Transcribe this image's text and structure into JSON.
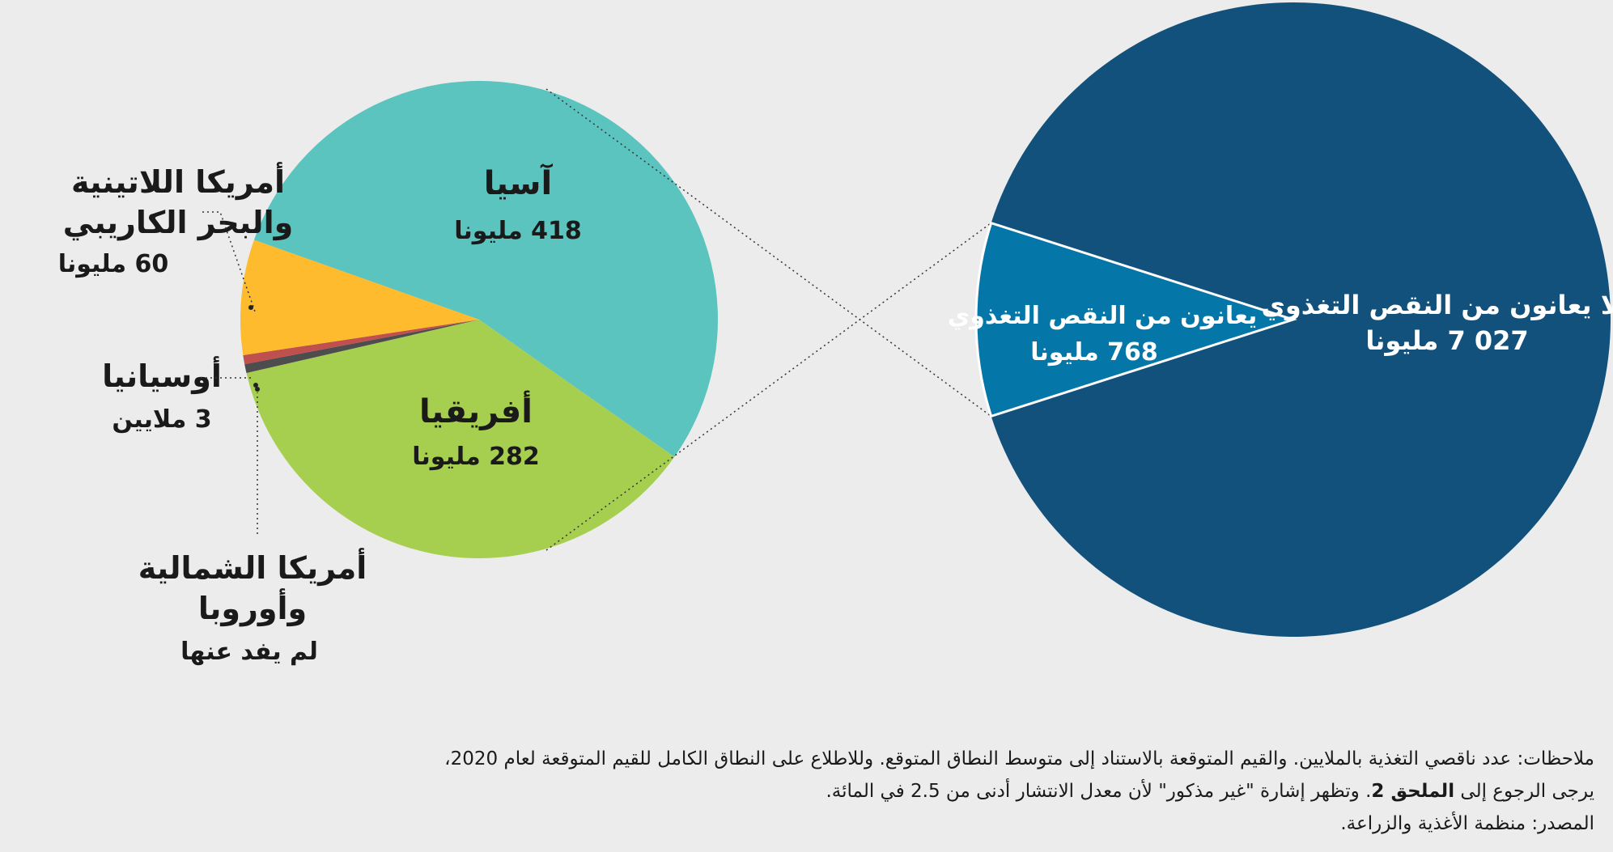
{
  "chart_data": [
    {
      "type": "pie",
      "slices": [
        {
          "label": "آسيا",
          "value": 418,
          "value_label": "418 مليونا",
          "color": "#5bc4bf"
        },
        {
          "label": "أفريقيا",
          "value": 282,
          "value_label": "282 مليونا",
          "color": "#a7cf4f"
        },
        {
          "label": "أمريكا الشمالية وأوروبا",
          "label_lines": [
            "أمريكا الشمالية",
            "وأوروبا"
          ],
          "value": null,
          "value_label": "لم يفد عنها",
          "color": "#4d4d4d"
        },
        {
          "label": "أوسيانيا",
          "value": 3,
          "value_label": "3 ملايين",
          "color": "#c0504d"
        },
        {
          "label": "أمريكا اللاتينية والبحر الكاريبي",
          "label_lines": [
            "أمريكا اللاتينية",
            "والبحر الكاريبي"
          ],
          "value": 60,
          "value_label": "60 مليونا",
          "color": "#fdbb2d"
        }
      ]
    },
    {
      "type": "pie",
      "slices": [
        {
          "label": "لا يعانون من النقص التغذوي",
          "value": 7027,
          "value_label": "027 7 مليونا",
          "color": "#12517b"
        },
        {
          "label": "يعانون من النقص التغذوي",
          "value": 768,
          "value_label": "768 مليونا",
          "color": "#0477a8"
        }
      ]
    }
  ],
  "notes": {
    "line1": "ملاحظات: عدد ناقصي التغذية بالملايين. والقيم المتوقعة بالاستناد إلى متوسط النطاق المتوقع. وللاطلاع على النطاق الكامل للقيم المتوقعة لعام 2020،",
    "line2_pre": "يرجى الرجوع إلى ",
    "line2_bold": "الملحق 2",
    "line2_post": ". وتظهر إشارة \"غير مذكور\" لأن معدل الانتشار أدنى من 2.5 في المائة.",
    "source": "المصدر: منظمة الأغذية والزراعة."
  }
}
